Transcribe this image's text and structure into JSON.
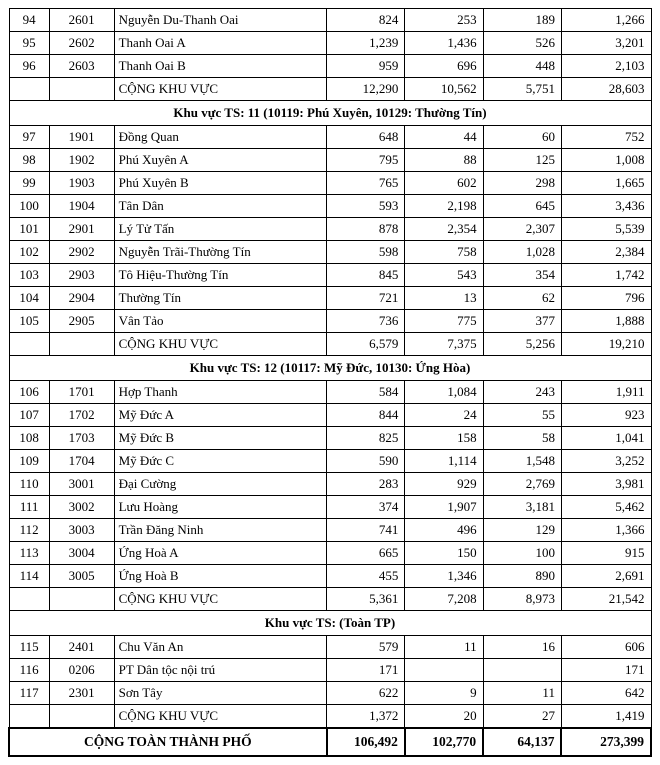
{
  "subtotal_label": "CỘNG KHU VỰC",
  "grand_total_label": "CỘNG TOÀN THÀNH PHỐ",
  "sections": [
    {
      "header": null,
      "rows": [
        {
          "idx": "94",
          "code": "2601",
          "name": "Nguyễn Du-Thanh Oai",
          "v1": "824",
          "v2": "253",
          "v3": "189",
          "v4": "1,266"
        },
        {
          "idx": "95",
          "code": "2602",
          "name": "Thanh Oai A",
          "v1": "1,239",
          "v2": "1,436",
          "v3": "526",
          "v4": "3,201"
        },
        {
          "idx": "96",
          "code": "2603",
          "name": "Thanh Oai B",
          "v1": "959",
          "v2": "696",
          "v3": "448",
          "v4": "2,103"
        }
      ],
      "subtotal": {
        "v1": "12,290",
        "v2": "10,562",
        "v3": "5,751",
        "v4": "28,603"
      }
    },
    {
      "header": "Khu vực TS: 11 (10119: Phú Xuyên, 10129: Thường Tín)",
      "rows": [
        {
          "idx": "97",
          "code": "1901",
          "name": "Đồng Quan",
          "v1": "648",
          "v2": "44",
          "v3": "60",
          "v4": "752"
        },
        {
          "idx": "98",
          "code": "1902",
          "name": "Phú Xuyên A",
          "v1": "795",
          "v2": "88",
          "v3": "125",
          "v4": "1,008"
        },
        {
          "idx": "99",
          "code": "1903",
          "name": "Phú Xuyên B",
          "v1": "765",
          "v2": "602",
          "v3": "298",
          "v4": "1,665"
        },
        {
          "idx": "100",
          "code": "1904",
          "name": "Tân Dân",
          "v1": "593",
          "v2": "2,198",
          "v3": "645",
          "v4": "3,436"
        },
        {
          "idx": "101",
          "code": "2901",
          "name": "Lý Tử Tấn",
          "v1": "878",
          "v2": "2,354",
          "v3": "2,307",
          "v4": "5,539"
        },
        {
          "idx": "102",
          "code": "2902",
          "name": "Nguyễn Trãi-Thường Tín",
          "v1": "598",
          "v2": "758",
          "v3": "1,028",
          "v4": "2,384"
        },
        {
          "idx": "103",
          "code": "2903",
          "name": "Tô Hiệu-Thường Tín",
          "v1": "845",
          "v2": "543",
          "v3": "354",
          "v4": "1,742"
        },
        {
          "idx": "104",
          "code": "2904",
          "name": "Thường Tín",
          "v1": "721",
          "v2": "13",
          "v3": "62",
          "v4": "796"
        },
        {
          "idx": "105",
          "code": "2905",
          "name": "Vân Tảo",
          "v1": "736",
          "v2": "775",
          "v3": "377",
          "v4": "1,888"
        }
      ],
      "subtotal": {
        "v1": "6,579",
        "v2": "7,375",
        "v3": "5,256",
        "v4": "19,210"
      }
    },
    {
      "header": "Khu vực TS: 12 (10117: Mỹ Đức, 10130: Ứng Hòa)",
      "rows": [
        {
          "idx": "106",
          "code": "1701",
          "name": "Hợp Thanh",
          "v1": "584",
          "v2": "1,084",
          "v3": "243",
          "v4": "1,911"
        },
        {
          "idx": "107",
          "code": "1702",
          "name": "Mỹ Đức A",
          "v1": "844",
          "v2": "24",
          "v3": "55",
          "v4": "923"
        },
        {
          "idx": "108",
          "code": "1703",
          "name": "Mỹ Đức B",
          "v1": "825",
          "v2": "158",
          "v3": "58",
          "v4": "1,041"
        },
        {
          "idx": "109",
          "code": "1704",
          "name": "Mỹ Đức C",
          "v1": "590",
          "v2": "1,114",
          "v3": "1,548",
          "v4": "3,252"
        },
        {
          "idx": "110",
          "code": "3001",
          "name": "Đại Cường",
          "v1": "283",
          "v2": "929",
          "v3": "2,769",
          "v4": "3,981"
        },
        {
          "idx": "111",
          "code": "3002",
          "name": "Lưu Hoàng",
          "v1": "374",
          "v2": "1,907",
          "v3": "3,181",
          "v4": "5,462"
        },
        {
          "idx": "112",
          "code": "3003",
          "name": "Trần Đăng Ninh",
          "v1": "741",
          "v2": "496",
          "v3": "129",
          "v4": "1,366"
        },
        {
          "idx": "113",
          "code": "3004",
          "name": "Ứng Hoà A",
          "v1": "665",
          "v2": "150",
          "v3": "100",
          "v4": "915"
        },
        {
          "idx": "114",
          "code": "3005",
          "name": "Ứng Hoà B",
          "v1": "455",
          "v2": "1,346",
          "v3": "890",
          "v4": "2,691"
        }
      ],
      "subtotal": {
        "v1": "5,361",
        "v2": "7,208",
        "v3": "8,973",
        "v4": "21,542"
      }
    },
    {
      "header": "Khu vực TS: (Toàn TP)",
      "rows": [
        {
          "idx": "115",
          "code": "2401",
          "name": "Chu Văn An",
          "v1": "579",
          "v2": "11",
          "v3": "16",
          "v4": "606"
        },
        {
          "idx": "116",
          "code": "0206",
          "name": "PT Dân tộc nội trú",
          "v1": "171",
          "v2": "",
          "v3": "",
          "v4": "171"
        },
        {
          "idx": "117",
          "code": "2301",
          "name": "Sơn Tây",
          "v1": "622",
          "v2": "9",
          "v3": "11",
          "v4": "642"
        }
      ],
      "subtotal": {
        "v1": "1,372",
        "v2": "20",
        "v3": "27",
        "v4": "1,419"
      }
    }
  ],
  "grand_total": {
    "v1": "106,492",
    "v2": "102,770",
    "v3": "64,137",
    "v4": "273,399"
  }
}
